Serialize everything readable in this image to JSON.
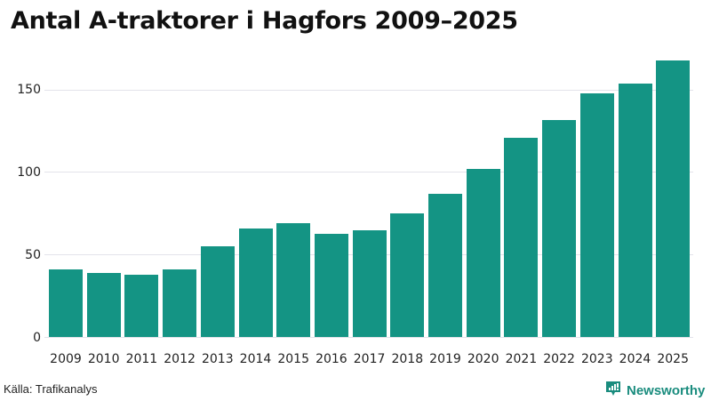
{
  "title": "Antal A-traktorer i Hagfors 2009–2025",
  "source": "Källa: Trafikanalys",
  "brand": {
    "name": "Newsworthy",
    "icon": "newsworthy-logo-icon",
    "color": "#1a8c7e"
  },
  "colors": {
    "bar": "#149484",
    "grid": "#e3e3ea"
  },
  "yaxis": {
    "ticks": [
      "0",
      "50",
      "100",
      "150"
    ]
  },
  "chart_data": {
    "type": "bar",
    "title": "Antal A-traktorer i Hagfors 2009–2025",
    "xlabel": "",
    "ylabel": "",
    "categories": [
      "2009",
      "2010",
      "2011",
      "2012",
      "2013",
      "2014",
      "2015",
      "2016",
      "2017",
      "2018",
      "2019",
      "2020",
      "2021",
      "2022",
      "2023",
      "2024",
      "2025"
    ],
    "values": [
      41,
      39,
      38,
      41,
      55,
      66,
      69,
      63,
      65,
      75,
      87,
      102,
      121,
      132,
      148,
      154,
      168
    ],
    "ylim": [
      0,
      170
    ],
    "yticks": [
      0,
      50,
      100,
      150
    ],
    "grid": true,
    "legend": null,
    "source": "Källa: Trafikanalys"
  }
}
